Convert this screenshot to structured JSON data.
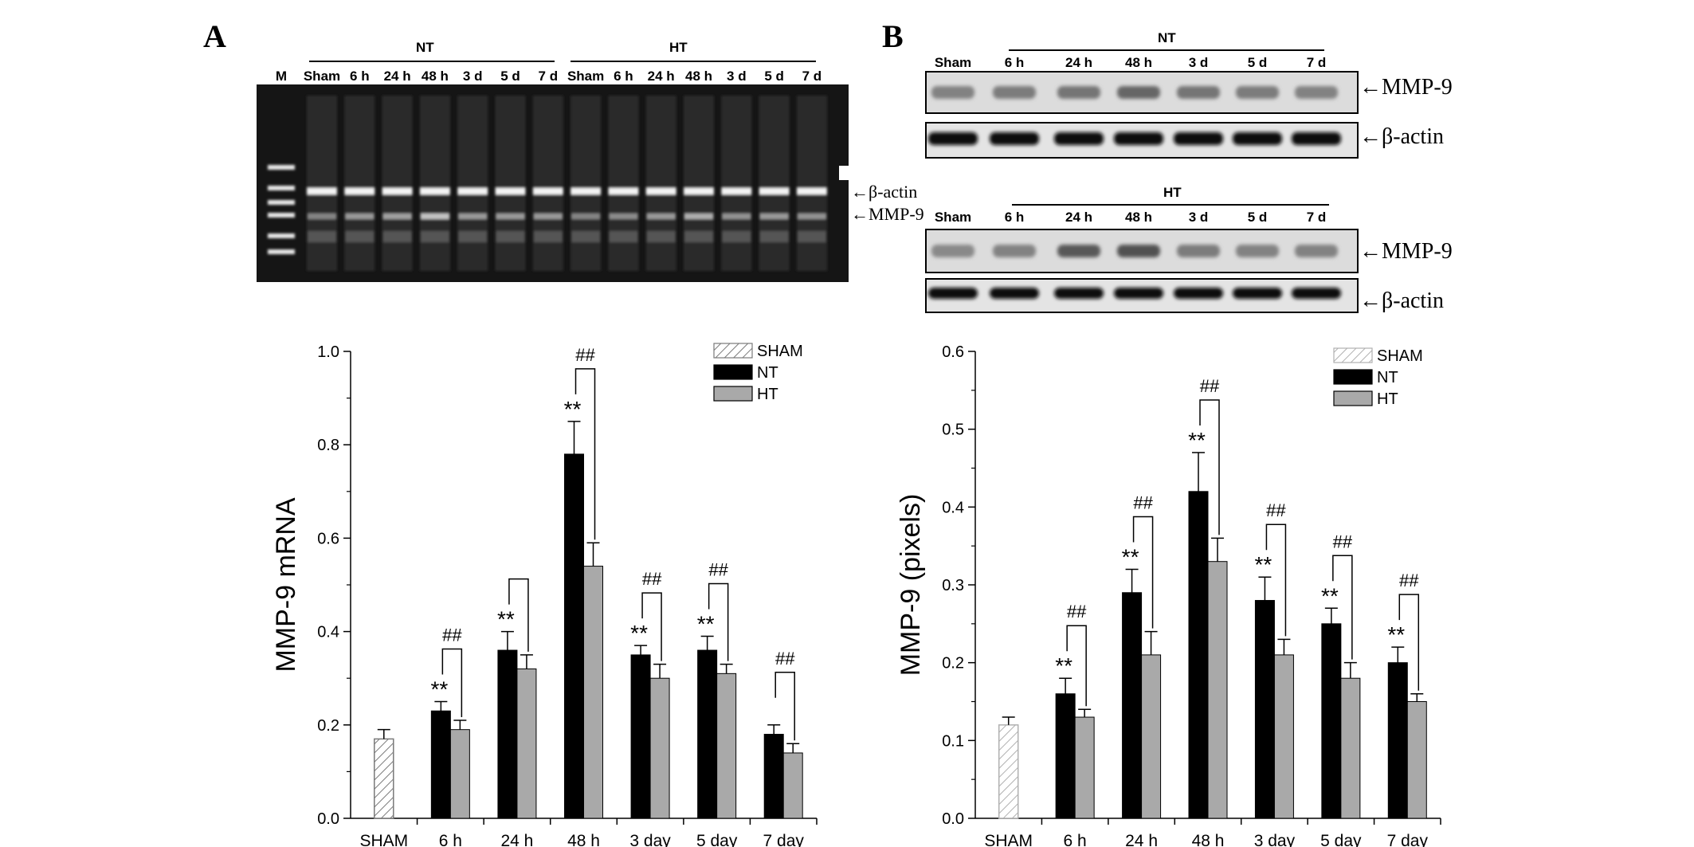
{
  "panel_a": {
    "letter": "A",
    "group_nt": "NT",
    "group_ht": "HT",
    "lane_marker": "M",
    "lanes": [
      "Sham",
      "6 h",
      "24 h",
      "48 h",
      "3 d",
      "5 d",
      "7 d",
      "Sham",
      "6 h",
      "24 h",
      "48 h",
      "3 d",
      "5 d",
      "7 d"
    ],
    "band_actin": "←β-actin",
    "band_mmp9": "←MMP-9"
  },
  "panel_b": {
    "letter": "B",
    "nt_label": "NT",
    "ht_label": "HT",
    "lanes": [
      "Sham",
      "6 h",
      "24 h",
      "48 h",
      "3 d",
      "5 d",
      "7 d"
    ],
    "mmp9_marker": "←MMP-9",
    "actin_marker": "←β-actin"
  },
  "colors": {
    "nt": "#000000",
    "ht": "#a9a9a9",
    "sham_hatch": "#7a7a7a",
    "gel_bg": "#151515"
  },
  "chart_data": [
    {
      "type": "bar",
      "title": "",
      "xlabel": "",
      "ylabel": "MMP-9 mRNA",
      "ylim": [
        0,
        1.0
      ],
      "yticks": [
        "0.0",
        "0.2",
        "0.4",
        "0.6",
        "0.8",
        "1.0"
      ],
      "categories": [
        "SHAM",
        "6 h",
        "24 h",
        "48 h",
        "3 day",
        "5 day",
        "7 day"
      ],
      "legend": [
        "SHAM",
        "NT",
        "HT"
      ],
      "legend_position": "top-right",
      "series": [
        {
          "name": "SHAM",
          "values": [
            0.17,
            null,
            null,
            null,
            null,
            null,
            null
          ],
          "errors": [
            0.02,
            null,
            null,
            null,
            null,
            null,
            null
          ]
        },
        {
          "name": "NT",
          "values": [
            null,
            0.23,
            0.36,
            0.78,
            0.35,
            0.36,
            0.18
          ],
          "errors": [
            null,
            0.02,
            0.04,
            0.07,
            0.02,
            0.03,
            0.02
          ]
        },
        {
          "name": "HT",
          "values": [
            null,
            0.19,
            0.32,
            0.54,
            0.3,
            0.31,
            0.14
          ],
          "errors": [
            null,
            0.02,
            0.03,
            0.05,
            0.03,
            0.02,
            0.02
          ]
        }
      ],
      "nt_marks": [
        "",
        "**",
        "**",
        "**",
        "**",
        "**",
        ""
      ],
      "pair_marks": [
        "",
        "##",
        "",
        "##",
        "##",
        "##",
        "##"
      ]
    },
    {
      "type": "bar",
      "title": "",
      "xlabel": "",
      "ylabel": "MMP-9 (pixels)",
      "ylim": [
        0,
        0.6
      ],
      "yticks": [
        "0.0",
        "0.1",
        "0.2",
        "0.3",
        "0.4",
        "0.5",
        "0.6"
      ],
      "categories": [
        "SHAM",
        "6 h",
        "24 h",
        "48 h",
        "3 day",
        "5 day",
        "7 day"
      ],
      "legend": [
        "SHAM",
        "NT",
        "HT"
      ],
      "legend_position": "top-right",
      "series": [
        {
          "name": "SHAM",
          "values": [
            0.12,
            null,
            null,
            null,
            null,
            null,
            null
          ],
          "errors": [
            0.01,
            null,
            null,
            null,
            null,
            null,
            null
          ]
        },
        {
          "name": "NT",
          "values": [
            null,
            0.16,
            0.29,
            0.42,
            0.28,
            0.25,
            0.2
          ],
          "errors": [
            null,
            0.02,
            0.03,
            0.05,
            0.03,
            0.02,
            0.02
          ]
        },
        {
          "name": "HT",
          "values": [
            null,
            0.13,
            0.21,
            0.33,
            0.21,
            0.18,
            0.15
          ],
          "errors": [
            null,
            0.01,
            0.03,
            0.03,
            0.02,
            0.02,
            0.01
          ]
        }
      ],
      "nt_marks": [
        "",
        "**",
        "**",
        "**",
        "**",
        "**",
        "**"
      ],
      "pair_marks": [
        "",
        "##",
        "##",
        "##",
        "##",
        "##",
        "##"
      ]
    }
  ]
}
